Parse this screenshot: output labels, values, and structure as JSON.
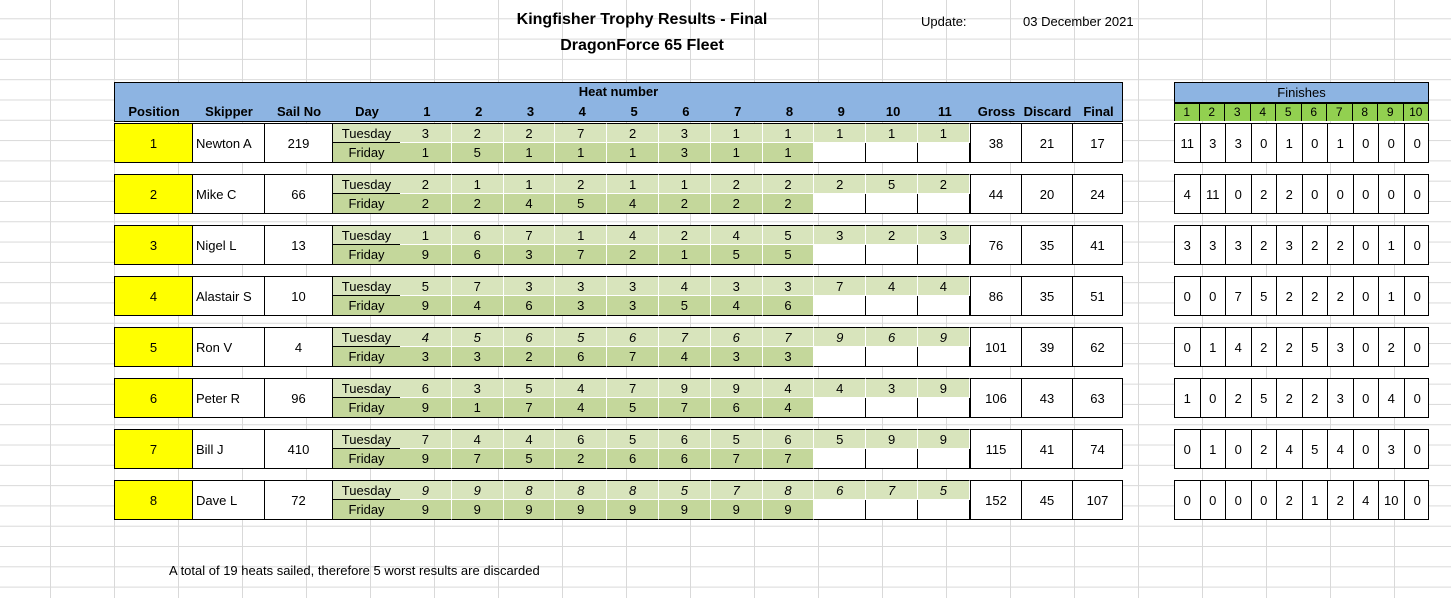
{
  "header": {
    "title": "Kingfisher Trophy Results - Final",
    "subtitle": "DragonForce 65 Fleet",
    "update_label": "Update:",
    "update_date": "03 December 2021"
  },
  "columns": {
    "position": "Position",
    "skipper": "Skipper",
    "sail_no": "Sail No",
    "day": "Day",
    "heat_number": "Heat number",
    "heats": [
      "1",
      "2",
      "3",
      "4",
      "5",
      "6",
      "7",
      "8",
      "9",
      "10",
      "11"
    ],
    "gross": "Gross",
    "discard": "Discard",
    "final": "Final"
  },
  "finishes_header": {
    "title": "Finishes",
    "places": [
      "1",
      "2",
      "3",
      "4",
      "5",
      "6",
      "7",
      "8",
      "9",
      "10"
    ]
  },
  "rows": [
    {
      "position": "1",
      "skipper": "Newton A",
      "sail_no": "219",
      "tuesday": [
        "3",
        "2",
        "2",
        "7",
        "2",
        "3",
        "1",
        "1",
        "1",
        "1",
        "1"
      ],
      "friday": [
        "1",
        "5",
        "1",
        "1",
        "1",
        "3",
        "1",
        "1"
      ],
      "gross": "38",
      "discard": "21",
      "final": "17",
      "finishes": [
        "11",
        "3",
        "3",
        "0",
        "1",
        "0",
        "1",
        "0",
        "0",
        "0"
      ],
      "italic": false
    },
    {
      "position": "2",
      "skipper": "Mike C",
      "sail_no": "66",
      "tuesday": [
        "2",
        "1",
        "1",
        "2",
        "1",
        "1",
        "2",
        "2",
        "2",
        "5",
        "2"
      ],
      "friday": [
        "2",
        "2",
        "4",
        "5",
        "4",
        "2",
        "2",
        "2"
      ],
      "gross": "44",
      "discard": "20",
      "final": "24",
      "finishes": [
        "4",
        "11",
        "0",
        "2",
        "2",
        "0",
        "0",
        "0",
        "0",
        "0"
      ],
      "italic": false
    },
    {
      "position": "3",
      "skipper": "Nigel L",
      "sail_no": "13",
      "tuesday": [
        "1",
        "6",
        "7",
        "1",
        "4",
        "2",
        "4",
        "5",
        "3",
        "2",
        "3"
      ],
      "friday": [
        "9",
        "6",
        "3",
        "7",
        "2",
        "1",
        "5",
        "5"
      ],
      "gross": "76",
      "discard": "35",
      "final": "41",
      "finishes": [
        "3",
        "3",
        "3",
        "2",
        "3",
        "2",
        "2",
        "0",
        "1",
        "0"
      ],
      "italic": false
    },
    {
      "position": "4",
      "skipper": "Alastair S",
      "sail_no": "10",
      "tuesday": [
        "5",
        "7",
        "3",
        "3",
        "3",
        "4",
        "3",
        "3",
        "7",
        "4",
        "4"
      ],
      "friday": [
        "9",
        "4",
        "6",
        "3",
        "3",
        "5",
        "4",
        "6"
      ],
      "gross": "86",
      "discard": "35",
      "final": "51",
      "finishes": [
        "0",
        "0",
        "7",
        "5",
        "2",
        "2",
        "2",
        "0",
        "1",
        "0"
      ],
      "italic": false
    },
    {
      "position": "5",
      "skipper": "Ron V",
      "sail_no": "4",
      "tuesday": [
        "4",
        "5",
        "6",
        "5",
        "6",
        "7",
        "6",
        "7",
        "9",
        "6",
        "9"
      ],
      "friday": [
        "3",
        "3",
        "2",
        "6",
        "7",
        "4",
        "3",
        "3"
      ],
      "gross": "101",
      "discard": "39",
      "final": "62",
      "finishes": [
        "0",
        "1",
        "4",
        "2",
        "2",
        "5",
        "3",
        "0",
        "2",
        "0"
      ],
      "italic": true
    },
    {
      "position": "6",
      "skipper": "Peter R",
      "sail_no": "96",
      "tuesday": [
        "6",
        "3",
        "5",
        "4",
        "7",
        "9",
        "9",
        "4",
        "4",
        "3",
        "9"
      ],
      "friday": [
        "9",
        "1",
        "7",
        "4",
        "5",
        "7",
        "6",
        "4"
      ],
      "gross": "106",
      "discard": "43",
      "final": "63",
      "finishes": [
        "1",
        "0",
        "2",
        "5",
        "2",
        "2",
        "3",
        "0",
        "4",
        "0"
      ],
      "italic": false
    },
    {
      "position": "7",
      "skipper": "Bill J",
      "sail_no": "410",
      "tuesday": [
        "7",
        "4",
        "4",
        "6",
        "5",
        "6",
        "5",
        "6",
        "5",
        "9",
        "9"
      ],
      "friday": [
        "9",
        "7",
        "5",
        "2",
        "6",
        "6",
        "7",
        "7"
      ],
      "gross": "115",
      "discard": "41",
      "final": "74",
      "finishes": [
        "0",
        "1",
        "0",
        "2",
        "4",
        "5",
        "4",
        "0",
        "3",
        "0"
      ],
      "italic": false
    },
    {
      "position": "8",
      "skipper": "Dave L",
      "sail_no": "72",
      "tuesday": [
        "9",
        "9",
        "8",
        "8",
        "8",
        "5",
        "7",
        "8",
        "6",
        "7",
        "5"
      ],
      "friday": [
        "9",
        "9",
        "9",
        "9",
        "9",
        "9",
        "9",
        "9"
      ],
      "gross": "152",
      "discard": "45",
      "final": "107",
      "finishes": [
        "0",
        "0",
        "0",
        "0",
        "2",
        "1",
        "2",
        "4",
        "10",
        "0"
      ],
      "italic": true
    }
  ],
  "days": {
    "tuesday": "Tuesday",
    "friday": "Friday"
  },
  "footer_note": "A total of 19 heats sailed, therefore 5 worst results are discarded",
  "colors": {
    "header_blue": "#8db4e2",
    "position_yellow": "#ffff00",
    "heat_green": "#d8e4bc",
    "finishes_green": "#92d050"
  }
}
